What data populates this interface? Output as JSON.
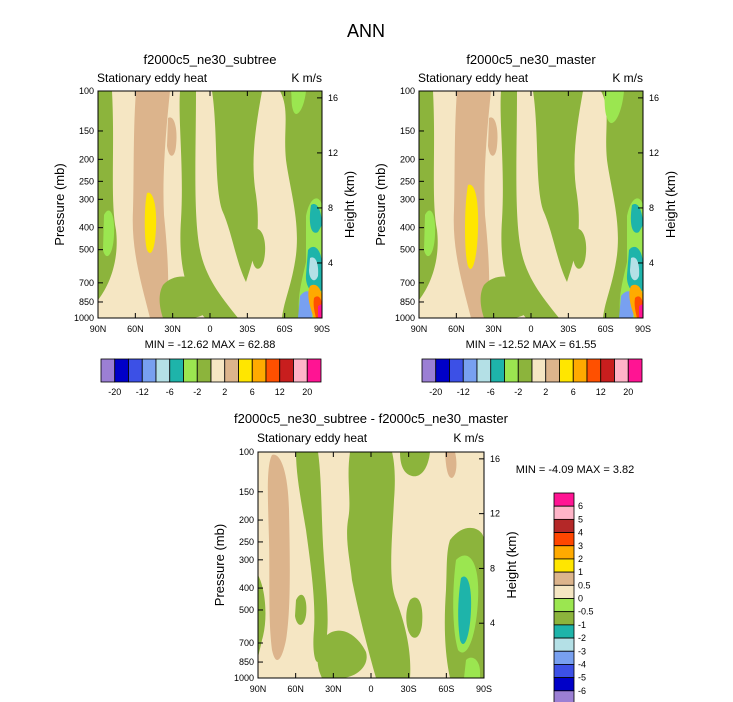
{
  "page_title": "ANN",
  "panels": [
    {
      "title": "f2000c5_ne30_subtree",
      "left_label": "Stationary eddy heat",
      "right_label": "K m/s",
      "minmax": "MIN = -12.62  MAX = 62.88"
    },
    {
      "title": "f2000c5_ne30_master",
      "left_label": "Stationary eddy heat",
      "right_label": "K m/s",
      "minmax": "MIN = -12.52  MAX = 61.55"
    },
    {
      "title": "f2000c5_ne30_subtree - f2000c5_ne30_master",
      "left_label": "Stationary eddy heat",
      "right_label": "K m/s",
      "minmax": "MIN =  -4.09  MAX =  3.82"
    }
  ],
  "chart_data": {
    "type": "heatmap",
    "x_axis": {
      "ticks": [
        "90N",
        "60N",
        "30N",
        "0",
        "30S",
        "60S",
        "90S"
      ],
      "range": [
        90,
        -90
      ]
    },
    "y_axis_left": {
      "label": "Pressure (mb)",
      "ticks": [
        "100",
        "150",
        "200",
        "250",
        "300",
        "400",
        "500",
        "700",
        "850",
        "1000"
      ],
      "values": [
        100,
        150,
        200,
        250,
        300,
        400,
        500,
        700,
        850,
        1000
      ],
      "scale": "log",
      "range": [
        1000,
        100
      ]
    },
    "y_axis_right": {
      "label": "Height (km)",
      "ticks": [
        "16",
        "12",
        "8",
        "4"
      ],
      "values": [
        16,
        12,
        8,
        4
      ]
    },
    "colorbar_top": {
      "colors": [
        "#9b7fd4",
        "#0000c8",
        "#3c50e6",
        "#78a0f0",
        "#b4e0e6",
        "#1eb4aa",
        "#9be650",
        "#8cb43c",
        "#f5e6c3",
        "#dcb48c",
        "#ffe600",
        "#ffaa00",
        "#ff5000",
        "#c81e1e",
        "#ffb4c8",
        "#ff1493"
      ],
      "labels": [
        "-20",
        "-12",
        "-6",
        "-2",
        "2",
        "6",
        "12",
        "20"
      ]
    },
    "colorbar_bottom": {
      "colors": [
        "#ff1493",
        "#ffb4c8",
        "#b42828",
        "#ff4600",
        "#ffaa00",
        "#ffe600",
        "#dcb48c",
        "#f5e6c3",
        "#9be650",
        "#8cb43c",
        "#1eb4aa",
        "#b4e0e6",
        "#78a0f0",
        "#3c50e6",
        "#0000c8",
        "#9b7fd4"
      ],
      "labels": [
        "6",
        "5",
        "4",
        "3",
        "2",
        "1",
        "0.5",
        "0",
        "-0.5",
        "-1",
        "-2",
        "-3",
        "-4",
        "-5",
        "-6"
      ]
    }
  }
}
